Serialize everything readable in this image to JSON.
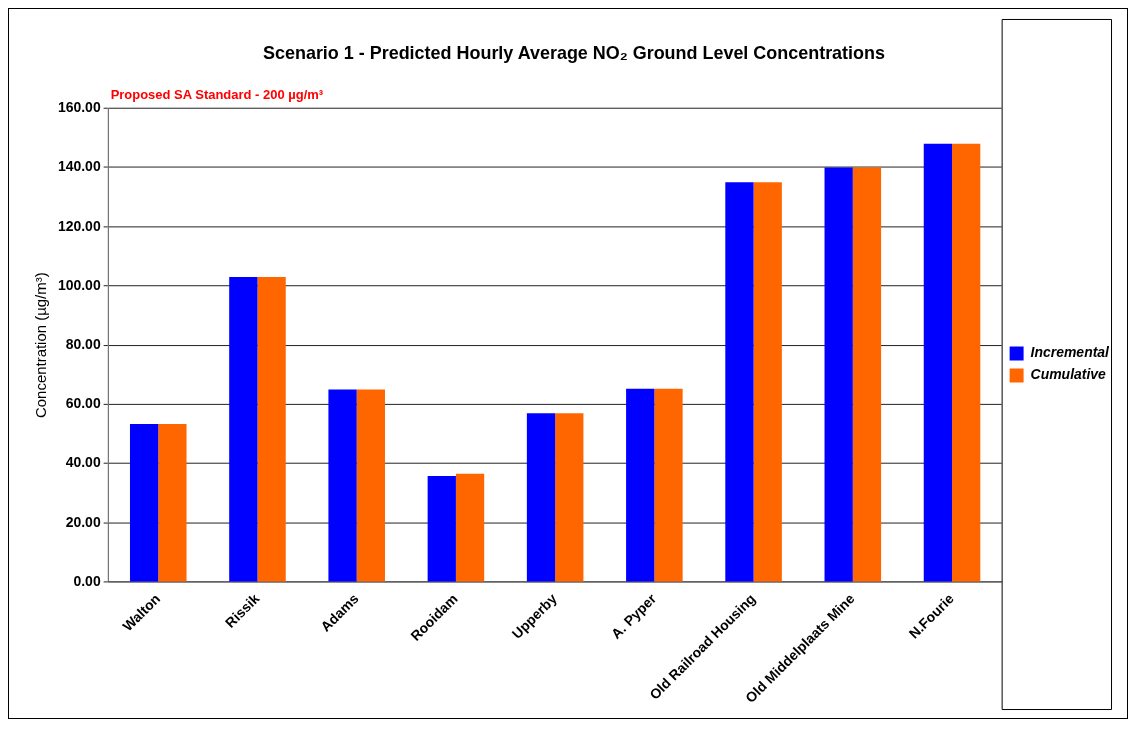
{
  "chart_data": {
    "type": "bar",
    "title": "Scenario 1 - Predicted Hourly Average NO₂ Ground Level Concentrations",
    "subtitle": "Proposed SA Standard - 200 µg/m³",
    "ylabel": "Concentration (µg/m³)",
    "categories": [
      "Walton",
      "Rissik",
      "Adams",
      "Rooidam",
      "Upperby",
      "A. Pyper",
      "Old Railroad Housing",
      "Old Middelplaats Mine",
      "N.Fourie"
    ],
    "series": [
      {
        "name": "Incremental",
        "color": "#0000ff",
        "values": [
          53.4,
          103,
          65,
          35.8,
          57,
          65.3,
          135,
          140,
          148
        ]
      },
      {
        "name": "Cumulative",
        "color": "#ff6600",
        "values": [
          53.4,
          103,
          65,
          36.6,
          57,
          65.3,
          135,
          140,
          148
        ]
      }
    ],
    "ylim": [
      0,
      160
    ],
    "yticks": [
      {
        "value": 0,
        "label": "0.00"
      },
      {
        "value": 20,
        "label": "20.00"
      },
      {
        "value": 40,
        "label": "40.00"
      },
      {
        "value": 60,
        "label": "60.00"
      },
      {
        "value": 80,
        "label": "80.00"
      },
      {
        "value": 100,
        "label": "100.00"
      },
      {
        "value": 120,
        "label": "120.00"
      },
      {
        "value": 140,
        "label": "140.00"
      },
      {
        "value": 160,
        "label": "160.00"
      }
    ],
    "grid": "y",
    "legend": "right"
  }
}
